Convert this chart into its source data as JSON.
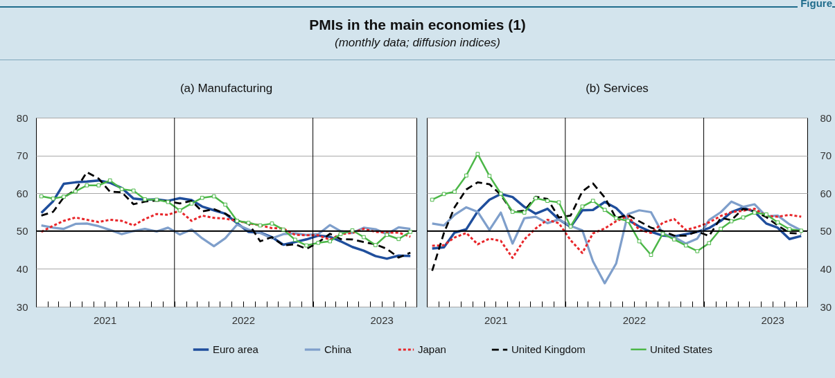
{
  "chart_data": [
    {
      "type": "other",
      "title": "PMIs in the main economies (1)",
      "subtitle": "(monthly data; diffusion indices)",
      "annotations": [
        "Figure"
      ]
    },
    {
      "type": "line",
      "title": "(a) Manufacturing",
      "x": [
        "2021-01-15",
        "2021-02-15",
        "2021-03-15",
        "2021-04-15",
        "2021-05-15",
        "2021-06-15",
        "2021-07-15",
        "2021-08-15",
        "2021-09-15",
        "2021-10-15",
        "2021-11-15",
        "2021-12-15",
        "2022-01-15",
        "2022-02-15",
        "2022-03-15",
        "2022-04-15",
        "2022-05-15",
        "2022-06-15",
        "2022-07-15",
        "2022-08-15",
        "2022-09-15",
        "2022-10-15",
        "2022-11-15",
        "2022-12-15",
        "2023-01-15",
        "2023-02-15",
        "2023-03-15",
        "2023-04-15",
        "2023-05-15",
        "2023-06-15",
        "2023-07-15",
        "2023-08-15",
        "2023-09-15"
      ],
      "series": [
        {
          "name": "Euro area",
          "color": "#1f4e9c",
          "line_style": "solid",
          "marker": "none",
          "values": [
            54.8,
            57.9,
            62.5,
            62.9,
            63.1,
            63.4,
            62.8,
            61.4,
            58.6,
            58.3,
            58.4,
            58.0,
            58.7,
            58.2,
            56.5,
            55.5,
            54.6,
            52.1,
            49.8,
            49.6,
            48.4,
            46.4,
            47.1,
            47.8,
            48.8,
            48.5,
            47.3,
            45.8,
            44.8,
            43.4,
            42.7,
            43.5,
            43.4
          ]
        },
        {
          "name": "China",
          "color": "#7f9fcb",
          "line_style": "solid",
          "marker": "none",
          "values": [
            51.5,
            50.9,
            50.6,
            51.9,
            52.0,
            51.3,
            50.3,
            49.2,
            50.0,
            50.6,
            49.9,
            50.9,
            49.1,
            50.4,
            48.1,
            46.0,
            48.1,
            51.7,
            50.4,
            49.5,
            48.1,
            49.2,
            49.4,
            49.0,
            49.2,
            51.6,
            50.0,
            49.5,
            50.9,
            50.5,
            49.2,
            51.0,
            50.6
          ]
        },
        {
          "name": "Japan",
          "color": "#e8262a",
          "line_style": "dotted",
          "marker": "none",
          "values": [
            49.8,
            51.4,
            52.7,
            53.6,
            53.0,
            52.4,
            53.0,
            52.7,
            51.5,
            53.2,
            54.5,
            54.3,
            55.4,
            52.7,
            54.1,
            53.5,
            53.3,
            52.7,
            52.1,
            51.5,
            50.8,
            50.7,
            49.0,
            48.9,
            48.9,
            47.7,
            49.2,
            49.5,
            50.6,
            49.8,
            49.6,
            49.6,
            48.5
          ]
        },
        {
          "name": "United Kingdom",
          "color": "#000000",
          "line_style": "dashed",
          "marker": "none",
          "values": [
            54.1,
            55.1,
            58.9,
            60.9,
            65.6,
            63.9,
            60.4,
            60.3,
            57.1,
            57.8,
            58.1,
            57.9,
            57.3,
            58.0,
            55.2,
            55.8,
            54.6,
            52.8,
            52.1,
            47.3,
            48.4,
            46.2,
            46.5,
            45.3,
            47.0,
            49.3,
            47.9,
            47.8,
            47.1,
            46.5,
            45.3,
            43.0,
            44.3
          ]
        },
        {
          "name": "United States",
          "color": "#4cb748",
          "line_style": "solid",
          "marker": "square",
          "values": [
            59.2,
            58.6,
            59.1,
            60.5,
            62.1,
            62.1,
            63.4,
            61.1,
            60.7,
            58.4,
            58.3,
            57.7,
            55.5,
            57.3,
            58.8,
            59.2,
            57.0,
            52.7,
            52.2,
            51.5,
            52.0,
            50.4,
            47.7,
            46.2,
            46.9,
            47.3,
            49.2,
            50.2,
            48.4,
            46.3,
            49.0,
            47.9,
            49.8
          ]
        }
      ],
      "xlim": [
        "2021-01-01",
        "2023-10-01"
      ],
      "xticks": [
        {
          "value": "2021-01-01",
          "label": null
        },
        {
          "value": "2021-02-01",
          "label": null
        },
        {
          "value": "2021-03-01",
          "label": null
        },
        {
          "value": "2021-04-01",
          "label": null
        },
        {
          "value": "2021-05-01",
          "label": null
        },
        {
          "value": "2021-06-01",
          "label": null
        },
        {
          "value": "2021-07-01",
          "label": "2021"
        },
        {
          "value": "2021-08-01",
          "label": null
        },
        {
          "value": "2021-09-01",
          "label": null
        },
        {
          "value": "2021-10-01",
          "label": null
        },
        {
          "value": "2021-11-01",
          "label": null
        },
        {
          "value": "2021-12-01",
          "label": null
        },
        {
          "value": "2022-01-01",
          "label": null
        },
        {
          "value": "2022-02-01",
          "label": null
        },
        {
          "value": "2022-03-01",
          "label": null
        },
        {
          "value": "2022-04-01",
          "label": null
        },
        {
          "value": "2022-05-01",
          "label": null
        },
        {
          "value": "2022-06-01",
          "label": null
        },
        {
          "value": "2022-07-01",
          "label": "2022"
        },
        {
          "value": "2022-08-01",
          "label": null
        },
        {
          "value": "2022-09-01",
          "label": null
        },
        {
          "value": "2022-10-01",
          "label": null
        },
        {
          "value": "2022-11-01",
          "label": null
        },
        {
          "value": "2022-12-01",
          "label": null
        },
        {
          "value": "2023-01-01",
          "label": null
        },
        {
          "value": "2023-02-01",
          "label": null
        },
        {
          "value": "2023-03-01",
          "label": null
        },
        {
          "value": "2023-04-01",
          "label": null
        },
        {
          "value": "2023-05-01",
          "label": null
        },
        {
          "value": "2023-06-01",
          "label": null
        },
        {
          "value": "2023-07-01",
          "label": "2023"
        },
        {
          "value": "2023-08-01",
          "label": null
        },
        {
          "value": "2023-09-01",
          "label": null
        },
        {
          "value": "2023-10-01",
          "label": null
        }
      ],
      "ylim": [
        30,
        80
      ],
      "yticks": [
        30,
        40,
        50,
        60,
        70,
        80
      ],
      "grid": "y",
      "legend": "bottom",
      "ref_lines": [
        {
          "axis": "y",
          "value": 50,
          "label": null,
          "color": "#000000"
        },
        {
          "axis": "x",
          "value": "2022-01-01",
          "label": null,
          "color": "#000000"
        },
        {
          "axis": "x",
          "value": "2023-01-01",
          "label": null,
          "color": "#000000"
        }
      ]
    },
    {
      "type": "line",
      "title": "(b) Services",
      "x": [
        "2021-01-15",
        "2021-02-15",
        "2021-03-15",
        "2021-04-15",
        "2021-05-15",
        "2021-06-15",
        "2021-07-15",
        "2021-08-15",
        "2021-09-15",
        "2021-10-15",
        "2021-11-15",
        "2021-12-15",
        "2022-01-15",
        "2022-02-15",
        "2022-03-15",
        "2022-04-15",
        "2022-05-15",
        "2022-06-15",
        "2022-07-15",
        "2022-08-15",
        "2022-09-15",
        "2022-10-15",
        "2022-11-15",
        "2022-12-15",
        "2023-01-15",
        "2023-02-15",
        "2023-03-15",
        "2023-04-15",
        "2023-05-15",
        "2023-06-15",
        "2023-07-15",
        "2023-08-15",
        "2023-09-15"
      ],
      "series": [
        {
          "color": "#1f4e9c",
          "line_style": "solid",
          "marker": "none",
          "values": [
            45.4,
            45.7,
            49.6,
            50.5,
            55.2,
            58.3,
            59.8,
            59.0,
            56.4,
            54.6,
            55.9,
            53.1,
            51.1,
            55.5,
            55.6,
            57.7,
            56.1,
            53.0,
            51.2,
            49.8,
            48.8,
            48.6,
            49.2,
            49.8,
            50.8,
            52.7,
            55.0,
            56.2,
            55.1,
            52.0,
            50.9,
            47.9,
            48.7
          ]
        },
        {
          "color": "#7f9fcb",
          "line_style": "solid",
          "marker": "none",
          "values": [
            52.0,
            51.5,
            54.3,
            56.3,
            55.1,
            50.3,
            54.9,
            46.7,
            53.4,
            53.8,
            52.1,
            53.1,
            51.4,
            50.2,
            42.0,
            36.2,
            41.4,
            54.5,
            55.5,
            55.0,
            49.3,
            48.4,
            46.7,
            48.0,
            52.9,
            55.0,
            57.8,
            56.4,
            57.1,
            53.9,
            54.1,
            51.8,
            50.2
          ]
        },
        {
          "color": "#e8262a",
          "line_style": "dotted",
          "marker": "none",
          "values": [
            46.1,
            46.3,
            48.3,
            49.5,
            46.5,
            48.0,
            47.4,
            42.9,
            47.8,
            50.7,
            53.0,
            52.1,
            47.6,
            44.2,
            49.4,
            50.7,
            52.6,
            54.0,
            50.3,
            49.5,
            52.2,
            53.2,
            50.3,
            51.1,
            52.3,
            54.0,
            55.0,
            55.4,
            55.9,
            54.0,
            53.8,
            54.3,
            53.8
          ]
        },
        {
          "color": "#000000",
          "line_style": "dashed",
          "marker": "none",
          "values": [
            39.5,
            49.5,
            56.3,
            61.0,
            62.9,
            62.4,
            59.6,
            55.0,
            55.4,
            59.1,
            58.5,
            53.6,
            54.1,
            60.5,
            62.6,
            58.9,
            53.4,
            54.3,
            52.6,
            50.9,
            50.0,
            48.8,
            48.8,
            49.9,
            48.7,
            53.5,
            52.9,
            55.9,
            55.2,
            53.7,
            51.5,
            49.5,
            49.3
          ]
        },
        {
          "color": "#4cb748",
          "line_style": "solid",
          "marker": "square",
          "values": [
            58.3,
            59.8,
            60.4,
            64.7,
            70.4,
            64.6,
            59.9,
            55.1,
            54.9,
            58.7,
            58.0,
            57.6,
            51.2,
            56.5,
            58.0,
            55.6,
            53.4,
            52.7,
            47.3,
            43.7,
            49.3,
            47.8,
            46.2,
            44.7,
            46.8,
            50.6,
            52.6,
            53.6,
            54.9,
            54.4,
            52.3,
            50.5,
            50.1
          ]
        }
      ],
      "xlim": [
        "2021-01-01",
        "2023-10-01"
      ],
      "xticks": [
        {
          "value": "2021-01-01",
          "label": null
        },
        {
          "value": "2021-02-01",
          "label": null
        },
        {
          "value": "2021-03-01",
          "label": null
        },
        {
          "value": "2021-04-01",
          "label": null
        },
        {
          "value": "2021-05-01",
          "label": null
        },
        {
          "value": "2021-06-01",
          "label": null
        },
        {
          "value": "2021-07-01",
          "label": "2021"
        },
        {
          "value": "2021-08-01",
          "label": null
        },
        {
          "value": "2021-09-01",
          "label": null
        },
        {
          "value": "2021-10-01",
          "label": null
        },
        {
          "value": "2021-11-01",
          "label": null
        },
        {
          "value": "2021-12-01",
          "label": null
        },
        {
          "value": "2022-01-01",
          "label": null
        },
        {
          "value": "2022-02-01",
          "label": null
        },
        {
          "value": "2022-03-01",
          "label": null
        },
        {
          "value": "2022-04-01",
          "label": null
        },
        {
          "value": "2022-05-01",
          "label": null
        },
        {
          "value": "2022-06-01",
          "label": null
        },
        {
          "value": "2022-07-01",
          "label": "2022"
        },
        {
          "value": "2022-08-01",
          "label": null
        },
        {
          "value": "2022-09-01",
          "label": null
        },
        {
          "value": "2022-10-01",
          "label": null
        },
        {
          "value": "2022-11-01",
          "label": null
        },
        {
          "value": "2022-12-01",
          "label": null
        },
        {
          "value": "2023-01-01",
          "label": null
        },
        {
          "value": "2023-02-01",
          "label": null
        },
        {
          "value": "2023-03-01",
          "label": null
        },
        {
          "value": "2023-04-01",
          "label": null
        },
        {
          "value": "2023-05-01",
          "label": null
        },
        {
          "value": "2023-06-01",
          "label": null
        },
        {
          "value": "2023-07-01",
          "label": "2023"
        },
        {
          "value": "2023-08-01",
          "label": null
        },
        {
          "value": "2023-09-01",
          "label": null
        },
        {
          "value": "2023-10-01",
          "label": null
        }
      ],
      "ylim": [
        30,
        80
      ],
      "yticks": [
        30,
        40,
        50,
        60,
        70,
        80
      ],
      "grid": "y",
      "ref_lines": [
        {
          "axis": "y",
          "value": 50,
          "label": null,
          "color": "#000000"
        },
        {
          "axis": "x",
          "value": "2022-01-01",
          "label": null,
          "color": "#000000"
        },
        {
          "axis": "x",
          "value": "2023-01-01",
          "label": null,
          "color": "#000000"
        }
      ]
    }
  ]
}
